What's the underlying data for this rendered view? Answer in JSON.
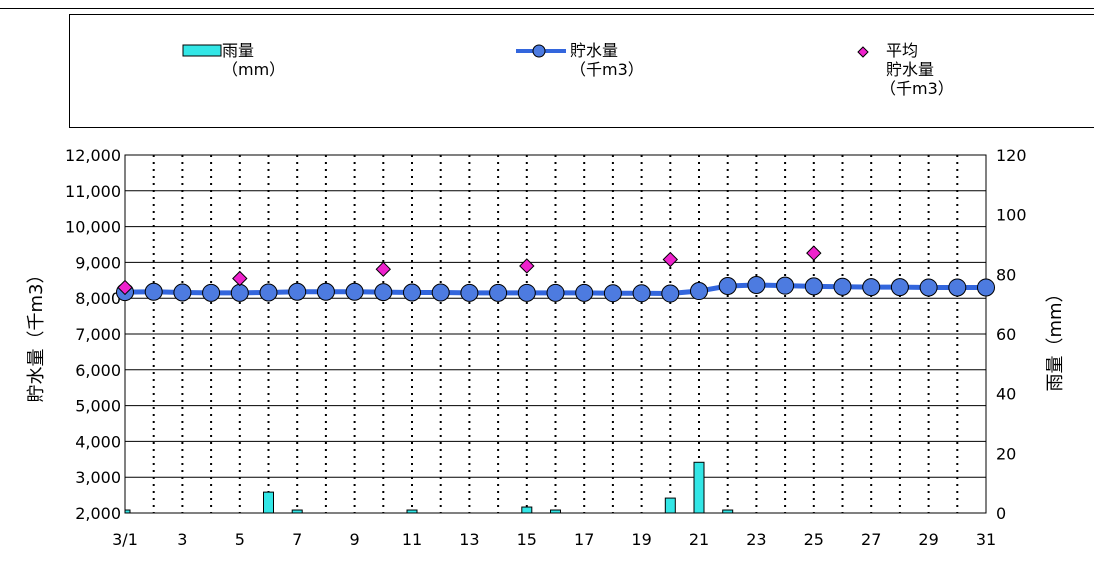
{
  "colors": {
    "rain": "#33e6e6",
    "storage_line": "#3366dd",
    "storage_marker": "#4d7be0",
    "average": "#ee22cc",
    "grid": "#000000"
  },
  "legend": {
    "rain_label": "雨量",
    "rain_unit": "（mm）",
    "storage_label": "貯水量",
    "storage_unit": "（千m3）",
    "average_label_1": "平均",
    "average_label_2": "貯水量",
    "average_unit": "（千m3）"
  },
  "chart_data": {
    "type": "bar+line+scatter",
    "left_axis": {
      "label": "貯水量（千m3）",
      "min": 2000,
      "max": 12000,
      "step": 1000,
      "tick_labels": [
        "2,000",
        "3,000",
        "4,000",
        "5,000",
        "6,000",
        "7,000",
        "8,000",
        "9,000",
        "10,000",
        "11,000",
        "12,000"
      ]
    },
    "right_axis": {
      "label": "雨量（mm）",
      "min": 0,
      "max": 120,
      "step": 20,
      "tick_labels": [
        "0",
        "20",
        "40",
        "60",
        "80",
        "100",
        "120"
      ]
    },
    "x_tick_labels": [
      "3/1",
      "3",
      "5",
      "7",
      "9",
      "11",
      "13",
      "15",
      "17",
      "19",
      "21",
      "23",
      "25",
      "27",
      "29",
      "31"
    ],
    "days": [
      1,
      2,
      3,
      4,
      5,
      6,
      7,
      8,
      9,
      10,
      11,
      12,
      13,
      14,
      15,
      16,
      17,
      18,
      19,
      20,
      21,
      22,
      23,
      24,
      25,
      26,
      27,
      28,
      29,
      30,
      31
    ],
    "series": [
      {
        "name": "雨量（mm）",
        "axis": "right",
        "kind": "bar",
        "values": [
          1,
          0,
          0,
          0,
          0,
          7,
          1,
          0,
          0,
          0,
          1,
          0,
          0,
          0,
          2,
          1,
          0,
          0,
          0,
          5,
          17,
          1,
          0,
          0,
          0,
          0,
          0,
          0,
          0,
          0,
          0
        ]
      },
      {
        "name": "貯水量（千m3）",
        "axis": "left",
        "kind": "line",
        "values": [
          8170,
          8180,
          8160,
          8150,
          8150,
          8160,
          8180,
          8180,
          8180,
          8170,
          8160,
          8160,
          8150,
          8150,
          8150,
          8150,
          8150,
          8140,
          8140,
          8130,
          8200,
          8340,
          8370,
          8350,
          8330,
          8320,
          8310,
          8310,
          8300,
          8300,
          8300
        ]
      },
      {
        "name": "平均貯水量（千m3）",
        "axis": "left",
        "kind": "scatter",
        "x": [
          1,
          5,
          10,
          15,
          20,
          25
        ],
        "values": [
          8300,
          8550,
          8810,
          8900,
          9080,
          9260
        ]
      }
    ]
  }
}
